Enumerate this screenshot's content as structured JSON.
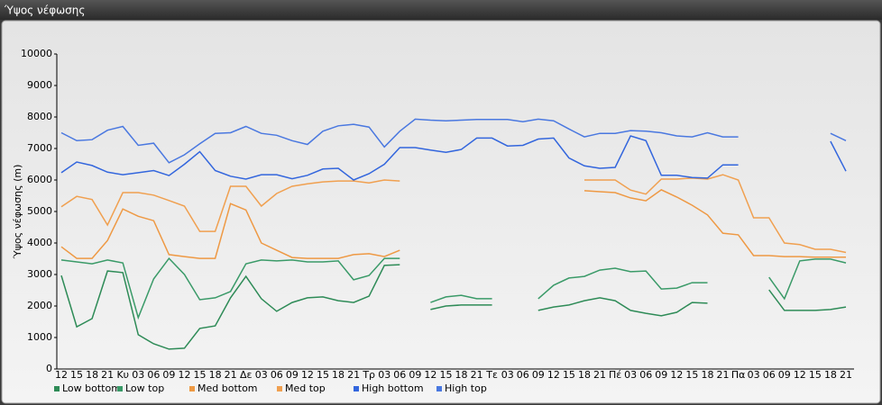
{
  "chart_data": {
    "type": "line",
    "title": "Ύψος νέφωσης",
    "y_label": "Ύψος νέφωσης (m)",
    "categories": [
      "12",
      "15",
      "18",
      "21",
      "Κυ",
      "03",
      "06",
      "09",
      "12",
      "15",
      "18",
      "21",
      "Δε",
      "03",
      "06",
      "09",
      "12",
      "15",
      "18",
      "21",
      "Τρ",
      "03",
      "06",
      "09",
      "12",
      "15",
      "18",
      "21",
      "Τε",
      "03",
      "06",
      "09",
      "12",
      "15",
      "18",
      "21",
      "Πέ",
      "03",
      "06",
      "09",
      "12",
      "15",
      "18",
      "21",
      "Πα",
      "03",
      "06",
      "09",
      "12",
      "15",
      "18",
      "21"
    ],
    "ylim": [
      0,
      10000
    ],
    "yticks": [
      0,
      1000,
      2000,
      3000,
      4000,
      5000,
      6000,
      7000,
      8000,
      9000,
      10000
    ],
    "grid": false,
    "series": [
      {
        "name": "Low bottom",
        "color": "#2e8b57",
        "values": [
          2970,
          1340,
          1600,
          3110,
          3060,
          1090,
          800,
          630,
          660,
          1290,
          1370,
          2260,
          2940,
          2230,
          1830,
          2110,
          2260,
          2290,
          2170,
          2110,
          2310,
          3290,
          3310,
          null,
          1890,
          2000,
          2030,
          2030,
          2030,
          null,
          null,
          1860,
          1970,
          2030,
          2170,
          2260,
          2170,
          1860,
          1770,
          1690,
          1800,
          2110,
          2090,
          null,
          null,
          null,
          2510,
          1860,
          1860,
          1860,
          1890,
          1970
        ]
      },
      {
        "name": "Low top",
        "color": "#3a9a68",
        "values": [
          3460,
          3400,
          3340,
          3460,
          3370,
          1630,
          2860,
          3510,
          3000,
          2200,
          2260,
          2460,
          3340,
          3460,
          3430,
          3460,
          3400,
          3400,
          3430,
          2830,
          2970,
          3510,
          3510,
          null,
          2110,
          2290,
          2340,
          2230,
          2230,
          null,
          null,
          2230,
          2660,
          2890,
          2940,
          3140,
          3200,
          3090,
          3110,
          2540,
          2570,
          2740,
          2740,
          null,
          null,
          null,
          2910,
          2230,
          3430,
          3490,
          3490,
          3370
        ]
      },
      {
        "name": "Med bottom",
        "color": "#ee9944",
        "values": [
          3880,
          3510,
          3510,
          4080,
          5080,
          4850,
          4710,
          3630,
          3570,
          3510,
          3510,
          5250,
          5050,
          4000,
          3770,
          3540,
          3510,
          3510,
          3510,
          3630,
          3660,
          3570,
          3770,
          null,
          null,
          null,
          null,
          null,
          null,
          null,
          null,
          null,
          null,
          null,
          5660,
          5630,
          5600,
          5430,
          5340,
          5690,
          5460,
          5200,
          4890,
          4310,
          4260,
          3600,
          3600,
          3570,
          3570,
          3550,
          3550,
          3550
        ]
      },
      {
        "name": "Med top",
        "color": "#f0a050",
        "values": [
          5150,
          5480,
          5380,
          4570,
          5600,
          5600,
          5520,
          5350,
          5170,
          4370,
          4370,
          5800,
          5800,
          5170,
          5570,
          5800,
          5880,
          5940,
          5970,
          5970,
          5910,
          6000,
          5970,
          null,
          null,
          null,
          null,
          null,
          null,
          null,
          null,
          null,
          null,
          null,
          6000,
          6000,
          6000,
          5680,
          5550,
          6030,
          6030,
          6060,
          6030,
          6170,
          6000,
          4800,
          4800,
          4000,
          3950,
          3800,
          3800,
          3700
        ]
      },
      {
        "name": "High bottom",
        "color": "#3366dd",
        "values": [
          6230,
          6570,
          6460,
          6250,
          6170,
          6230,
          6300,
          6140,
          6500,
          6900,
          6300,
          6120,
          6030,
          6170,
          6170,
          6040,
          6150,
          6350,
          6370,
          6000,
          6200,
          6500,
          7030,
          7030,
          6950,
          6880,
          6970,
          7330,
          7330,
          7080,
          7100,
          7300,
          7330,
          6700,
          6450,
          6370,
          6400,
          7400,
          7250,
          6150,
          6150,
          6080,
          6060,
          6480,
          6480,
          null,
          null,
          null,
          null,
          null,
          7230,
          6280
        ]
      },
      {
        "name": "High top",
        "color": "#4a78e0",
        "values": [
          7500,
          7250,
          7280,
          7580,
          7700,
          7100,
          7170,
          6550,
          6800,
          7150,
          7480,
          7500,
          7700,
          7480,
          7420,
          7250,
          7130,
          7550,
          7720,
          7770,
          7680,
          7050,
          7550,
          7930,
          7900,
          7880,
          7900,
          7920,
          7920,
          7920,
          7850,
          7930,
          7880,
          7620,
          7370,
          7480,
          7480,
          7570,
          7550,
          7500,
          7400,
          7370,
          7500,
          7370,
          7370,
          null,
          null,
          null,
          null,
          null,
          7480,
          7250
        ]
      }
    ]
  }
}
